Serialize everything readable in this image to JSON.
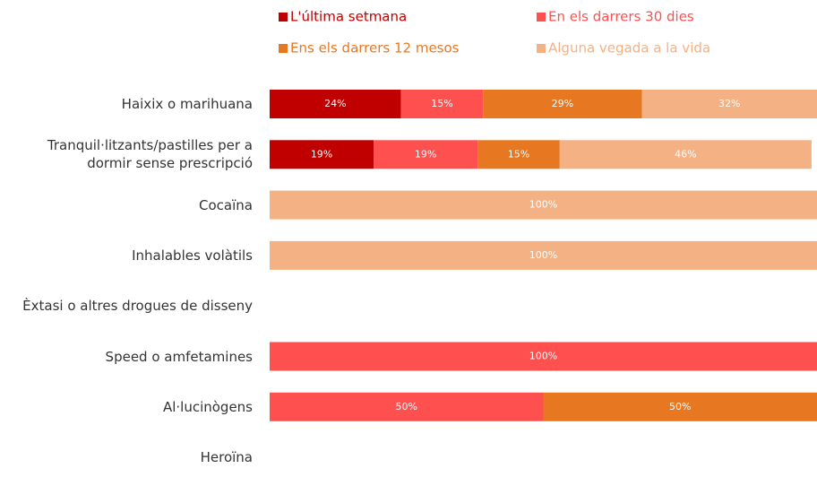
{
  "chart_data": {
    "type": "stacked-bar",
    "orientation": "horizontal",
    "categories": [
      "Haixix o marihuana",
      "Tranquil·litzants/pastilles per a dormir sense prescripció",
      "Cocaïna",
      "Inhalables volàtils",
      "Èxtasi o altres drogues de disseny",
      "Speed o amfetamines",
      "Al·lucinògens",
      "Heroïna"
    ],
    "xlim": [
      0,
      100
    ],
    "series": [
      {
        "name": "L'última setmana",
        "color": "#c00000",
        "values": [
          24,
          19,
          null,
          null,
          null,
          null,
          null,
          null
        ],
        "value_labels": [
          "24%",
          "19%",
          null,
          null,
          null,
          null,
          null,
          null
        ]
      },
      {
        "name": "En els darrers 30 dies",
        "color": "#ff5050",
        "values": [
          15,
          19,
          null,
          null,
          null,
          100,
          50,
          null
        ],
        "value_labels": [
          "15%",
          "19%",
          null,
          null,
          null,
          "100%",
          "50%",
          null
        ]
      },
      {
        "name": "Ens els darrers 12 mesos",
        "color": "#e87722",
        "values": [
          29,
          15,
          null,
          null,
          null,
          null,
          50,
          null
        ],
        "value_labels": [
          "29%",
          "15%",
          null,
          null,
          null,
          null,
          "50%",
          null
        ]
      },
      {
        "name": "Alguna vegada a la vida",
        "color": "#f4b183",
        "values": [
          32,
          46,
          100,
          100,
          null,
          null,
          null,
          null
        ],
        "value_labels": [
          "32%",
          "46%",
          "100%",
          "100%",
          null,
          null,
          null,
          null
        ]
      }
    ],
    "legend": "top"
  }
}
